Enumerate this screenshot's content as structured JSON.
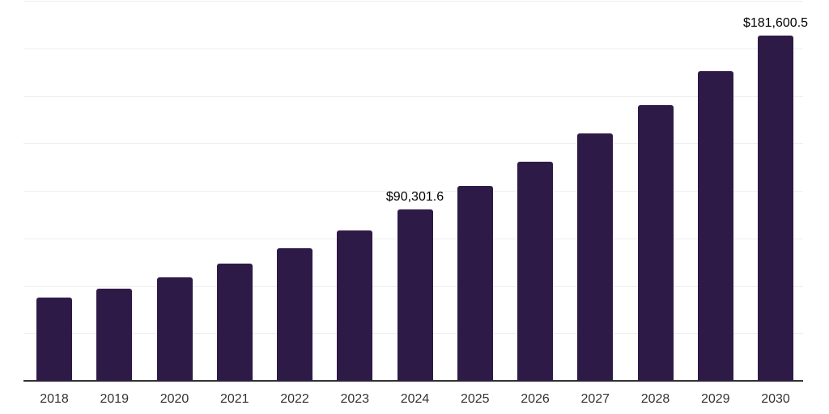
{
  "chart_data": {
    "type": "bar",
    "title": "",
    "xlabel": "",
    "ylabel": "",
    "categories": [
      "2018",
      "2019",
      "2020",
      "2021",
      "2022",
      "2023",
      "2024",
      "2025",
      "2026",
      "2027",
      "2028",
      "2029",
      "2030"
    ],
    "values": [
      43700,
      48600,
      54400,
      61600,
      69700,
      79000,
      90301.6,
      102500,
      115500,
      130200,
      145200,
      162800,
      181600.5
    ],
    "annotations": [
      {
        "index": 6,
        "category": "2024",
        "label": "$90,301.6"
      },
      {
        "index": 12,
        "category": "2030",
        "label": "$181,600.5"
      }
    ],
    "ylim": [
      0,
      200000
    ],
    "gridline_step": 25000,
    "grid": true,
    "legend": false,
    "y_axis_labels_visible": false
  },
  "style": {
    "bar_color": "#2E1A47",
    "background_color": "#ffffff",
    "grid_color": "#efefef",
    "axis_color": "#333333",
    "tick_label_color": "#333333",
    "data_label_color": "#000000"
  }
}
